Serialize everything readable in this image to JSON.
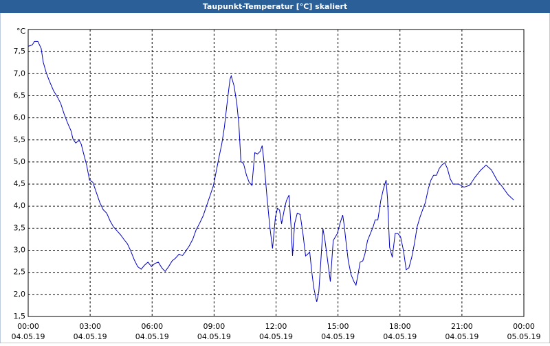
{
  "chart_data": {
    "type": "line",
    "title": "Taupunkt-Temperatur [°C] skaliert",
    "y_unit": "°C",
    "x": [
      0,
      0.2,
      0.3,
      0.47,
      0.63,
      0.73,
      0.87,
      1.03,
      1.23,
      1.4,
      1.57,
      1.73,
      1.9,
      2.07,
      2.17,
      2.3,
      2.47,
      2.57,
      2.7,
      2.83,
      2.97,
      3.13,
      3.3,
      3.47,
      3.63,
      3.8,
      3.97,
      4.13,
      4.3,
      4.47,
      4.63,
      4.8,
      4.97,
      5.13,
      5.3,
      5.47,
      5.63,
      5.8,
      5.97,
      6.13,
      6.3,
      6.47,
      6.63,
      6.8,
      6.97,
      7.13,
      7.3,
      7.47,
      7.63,
      7.8,
      7.97,
      8.13,
      8.3,
      8.47,
      8.63,
      8.8,
      8.97,
      9.13,
      9.23,
      9.37,
      9.5,
      9.63,
      9.77,
      9.83,
      9.97,
      10.1,
      10.2,
      10.3,
      10.43,
      10.57,
      10.7,
      10.83,
      10.97,
      11.1,
      11.23,
      11.33,
      11.43,
      11.57,
      11.7,
      11.83,
      11.97,
      12.07,
      12.17,
      12.27,
      12.4,
      12.5,
      12.63,
      12.73,
      12.8,
      12.9,
      13.03,
      13.17,
      13.3,
      13.43,
      13.53,
      13.63,
      13.73,
      13.83,
      13.97,
      14.07,
      14.17,
      14.27,
      14.37,
      14.5,
      14.63,
      14.77,
      14.87,
      14.97,
      15.1,
      15.23,
      15.3,
      15.4,
      15.5,
      15.63,
      15.77,
      15.87,
      15.97,
      16.07,
      16.2,
      16.3,
      16.43,
      16.57,
      16.7,
      16.8,
      16.93,
      17.07,
      17.2,
      17.33,
      17.4,
      17.5,
      17.63,
      17.77,
      17.9,
      18.03,
      18.17,
      18.3,
      18.43,
      18.57,
      18.7,
      18.83,
      18.97,
      19.1,
      19.23,
      19.37,
      19.5,
      19.63,
      19.77,
      19.9,
      20.03,
      20.17,
      20.3,
      20.43,
      20.57,
      20.83,
      21.1,
      21.37,
      21.63,
      21.9,
      22.17,
      22.43,
      22.7,
      22.97,
      23.23,
      23.5
    ],
    "series": [
      {
        "name": "Taupunkt-Temperatur",
        "color": "#0000c0",
        "values": [
          7.62,
          7.65,
          7.73,
          7.73,
          7.57,
          7.26,
          7.03,
          6.83,
          6.61,
          6.48,
          6.33,
          6.1,
          5.89,
          5.71,
          5.52,
          5.43,
          5.49,
          5.4,
          5.16,
          4.93,
          4.59,
          4.54,
          4.31,
          4.08,
          3.92,
          3.84,
          3.66,
          3.53,
          3.44,
          3.35,
          3.25,
          3.15,
          2.98,
          2.79,
          2.63,
          2.57,
          2.66,
          2.73,
          2.63,
          2.7,
          2.73,
          2.6,
          2.52,
          2.63,
          2.76,
          2.82,
          2.91,
          2.88,
          2.98,
          3.1,
          3.25,
          3.46,
          3.61,
          3.78,
          4.0,
          4.23,
          4.47,
          4.85,
          5.09,
          5.4,
          5.79,
          6.33,
          6.87,
          6.95,
          6.72,
          6.33,
          5.86,
          5.01,
          4.96,
          4.7,
          4.54,
          4.47,
          5.21,
          5.18,
          5.24,
          5.37,
          4.93,
          4.16,
          3.53,
          3.04,
          3.75,
          3.95,
          3.91,
          3.6,
          3.92,
          4.12,
          4.25,
          3.53,
          2.87,
          3.6,
          3.84,
          3.81,
          3.38,
          2.87,
          2.91,
          2.96,
          2.51,
          2.14,
          1.83,
          2.06,
          2.76,
          3.49,
          3.22,
          2.76,
          2.29,
          3.22,
          3.3,
          3.38,
          3.61,
          3.8,
          3.57,
          3.15,
          2.76,
          2.45,
          2.29,
          2.21,
          2.45,
          2.73,
          2.76,
          2.91,
          3.22,
          3.38,
          3.53,
          3.69,
          3.69,
          4.12,
          4.39,
          4.59,
          4.16,
          3.07,
          2.84,
          3.38,
          3.38,
          3.3,
          2.99,
          2.56,
          2.6,
          2.84,
          3.15,
          3.53,
          3.75,
          3.92,
          4.08,
          4.39,
          4.59,
          4.7,
          4.7,
          4.85,
          4.93,
          4.98,
          4.85,
          4.62,
          4.5,
          4.5,
          4.43,
          4.47,
          4.65,
          4.81,
          4.93,
          4.82,
          4.59,
          4.43,
          4.26,
          4.14
        ]
      }
    ],
    "xlim": [
      0,
      24
    ],
    "ylim": [
      1.5,
      8
    ],
    "xticks": [
      {
        "value": 0,
        "label": "00:00"
      },
      {
        "value": 3,
        "label": "03:00"
      },
      {
        "value": 6,
        "label": "06:00"
      },
      {
        "value": 9,
        "label": "09:00"
      },
      {
        "value": 12,
        "label": "12:00"
      },
      {
        "value": 15,
        "label": "15:00"
      },
      {
        "value": 18,
        "label": "18:00"
      },
      {
        "value": 21,
        "label": "21:00"
      },
      {
        "value": 24,
        "label": "00:00"
      }
    ],
    "xtick_dates": [
      "04.05.19",
      "04.05.19",
      "04.05.19",
      "04.05.19",
      "04.05.19",
      "04.05.19",
      "04.05.19",
      "04.05.19",
      "05.05.19"
    ],
    "yticks": [
      {
        "value": 1.5,
        "label": "1,5"
      },
      {
        "value": 2,
        "label": "2,0"
      },
      {
        "value": 2.5,
        "label": "2,5"
      },
      {
        "value": 3,
        "label": "3,0"
      },
      {
        "value": 3.5,
        "label": "3,5"
      },
      {
        "value": 4,
        "label": "4,0"
      },
      {
        "value": 4.5,
        "label": "4,5"
      },
      {
        "value": 5,
        "label": "5,0"
      },
      {
        "value": 5.5,
        "label": "5,5"
      },
      {
        "value": 6,
        "label": "6,0"
      },
      {
        "value": 6.5,
        "label": "6,5"
      },
      {
        "value": 7,
        "label": "7,0"
      },
      {
        "value": 7.5,
        "label": "7,5"
      }
    ],
    "grid": true
  }
}
